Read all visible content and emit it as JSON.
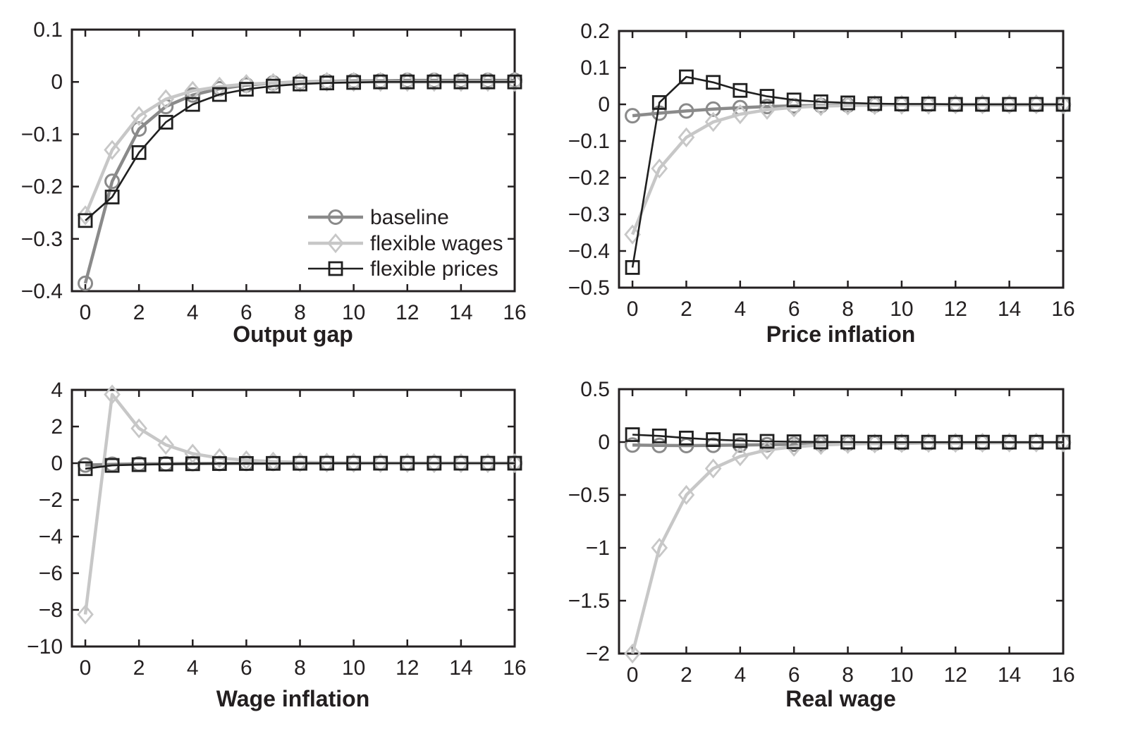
{
  "figure": {
    "background": "#ffffff",
    "description": "2x2 grid of impulse-response line charts"
  },
  "colors": {
    "baseline": "#8a8a8a",
    "flexible_wages": "#c7c7c7",
    "flexible_prices": "#1f1f1f",
    "axis": "#231f20"
  },
  "legend": {
    "position": "inside top-left panel, lower right area",
    "entries": [
      {
        "label": "baseline",
        "marker": "circle",
        "color": "baseline"
      },
      {
        "label": "flexible wages",
        "marker": "diamond",
        "color": "flexible_wages"
      },
      {
        "label": "flexible prices",
        "marker": "square",
        "color": "flexible_prices"
      }
    ]
  },
  "chart_data": [
    {
      "type": "line",
      "title": "Output gap",
      "x": [
        0,
        1,
        2,
        3,
        4,
        5,
        6,
        7,
        8,
        9,
        10,
        11,
        12,
        13,
        14,
        15,
        16
      ],
      "xticks": [
        0,
        2,
        4,
        6,
        8,
        10,
        12,
        14,
        16
      ],
      "yticks": [
        0.1,
        0,
        -0.1,
        -0.2,
        -0.3,
        -0.4
      ],
      "ylim": [
        -0.4,
        0.1
      ],
      "xlim": [
        -0.5,
        16
      ],
      "grid": false,
      "legend_visible": true,
      "series": [
        {
          "name": "baseline",
          "marker": "circle",
          "color": "baseline",
          "values": [
            -0.385,
            -0.19,
            -0.09,
            -0.047,
            -0.025,
            -0.013,
            -0.006,
            -0.002,
            0,
            0.001,
            0.002,
            0.002,
            0.003,
            0.003,
            0.003,
            0.003,
            0.003
          ]
        },
        {
          "name": "flexible wages",
          "marker": "diamond",
          "color": "flexible_wages",
          "values": [
            -0.255,
            -0.13,
            -0.065,
            -0.033,
            -0.017,
            -0.009,
            -0.004,
            -0.002,
            -0.001,
            0,
            0,
            0,
            0,
            0,
            0,
            0,
            0
          ]
        },
        {
          "name": "flexible prices",
          "marker": "square",
          "color": "flexible_prices",
          "values": [
            -0.265,
            -0.22,
            -0.135,
            -0.077,
            -0.043,
            -0.024,
            -0.014,
            -0.008,
            -0.004,
            -0.002,
            -0.001,
            0,
            0,
            0,
            0,
            0,
            0
          ]
        }
      ]
    },
    {
      "type": "line",
      "title": "Price inflation",
      "x": [
        0,
        1,
        2,
        3,
        4,
        5,
        6,
        7,
        8,
        9,
        10,
        11,
        12,
        13,
        14,
        15,
        16
      ],
      "xticks": [
        0,
        2,
        4,
        6,
        8,
        10,
        12,
        14,
        16
      ],
      "yticks": [
        0.2,
        0.1,
        0,
        -0.1,
        -0.2,
        -0.3,
        -0.4,
        -0.5
      ],
      "ylim": [
        -0.5,
        0.2
      ],
      "xlim": [
        -0.5,
        16
      ],
      "grid": false,
      "legend_visible": false,
      "series": [
        {
          "name": "baseline",
          "marker": "circle",
          "color": "baseline",
          "values": [
            -0.031,
            -0.024,
            -0.018,
            -0.013,
            -0.009,
            -0.006,
            -0.004,
            -0.003,
            -0.002,
            -0.002,
            -0.001,
            -0.001,
            -0.001,
            -0.001,
            -0.001,
            -0.001,
            -0.001
          ]
        },
        {
          "name": "flexible wages",
          "marker": "diamond",
          "color": "flexible_wages",
          "values": [
            -0.355,
            -0.175,
            -0.09,
            -0.048,
            -0.027,
            -0.015,
            -0.008,
            -0.005,
            -0.003,
            -0.002,
            -0.001,
            -0.001,
            0,
            0,
            0,
            0,
            0
          ]
        },
        {
          "name": "flexible prices",
          "marker": "square",
          "color": "flexible_prices",
          "values": [
            -0.445,
            0.005,
            0.075,
            0.06,
            0.038,
            0.022,
            0.012,
            0.007,
            0.004,
            0.002,
            0.001,
            0.001,
            0,
            0,
            0,
            0,
            0
          ]
        }
      ]
    },
    {
      "type": "line",
      "title": "Wage inflation",
      "x": [
        0,
        1,
        2,
        3,
        4,
        5,
        6,
        7,
        8,
        9,
        10,
        11,
        12,
        13,
        14,
        15,
        16
      ],
      "xticks": [
        0,
        2,
        4,
        6,
        8,
        10,
        12,
        14,
        16
      ],
      "yticks": [
        4,
        2,
        0,
        -2,
        -4,
        -6,
        -8,
        -10
      ],
      "ylim": [
        -10,
        4
      ],
      "xlim": [
        -0.5,
        16
      ],
      "grid": false,
      "legend_visible": false,
      "series": [
        {
          "name": "baseline",
          "marker": "circle",
          "color": "baseline",
          "values": [
            -0.1,
            -0.06,
            -0.04,
            -0.03,
            -0.02,
            -0.015,
            -0.01,
            -0.005,
            0,
            0,
            0,
            0,
            0,
            0,
            0,
            0,
            0
          ]
        },
        {
          "name": "flexible wages",
          "marker": "diamond",
          "color": "flexible_wages",
          "values": [
            -8.25,
            3.75,
            1.9,
            1.0,
            0.52,
            0.28,
            0.16,
            0.09,
            0.05,
            0.03,
            0.02,
            0.01,
            0.01,
            0,
            0,
            0,
            0
          ]
        },
        {
          "name": "flexible prices",
          "marker": "square",
          "color": "flexible_prices",
          "values": [
            -0.3,
            -0.12,
            -0.08,
            -0.05,
            -0.03,
            -0.02,
            -0.015,
            -0.01,
            -0.005,
            0,
            0,
            0,
            0,
            0,
            0,
            0,
            0
          ]
        }
      ]
    },
    {
      "type": "line",
      "title": "Real wage",
      "x": [
        0,
        1,
        2,
        3,
        4,
        5,
        6,
        7,
        8,
        9,
        10,
        11,
        12,
        13,
        14,
        15,
        16
      ],
      "xticks": [
        0,
        2,
        4,
        6,
        8,
        10,
        12,
        14,
        16
      ],
      "yticks": [
        0.5,
        0,
        -0.5,
        -1,
        -1.5,
        -2
      ],
      "ylim": [
        -2,
        0.5
      ],
      "xlim": [
        -0.5,
        16
      ],
      "grid": false,
      "legend_visible": false,
      "series": [
        {
          "name": "baseline",
          "marker": "circle",
          "color": "baseline",
          "values": [
            -0.028,
            -0.032,
            -0.033,
            -0.031,
            -0.028,
            -0.025,
            -0.021,
            -0.018,
            -0.015,
            -0.013,
            -0.011,
            -0.009,
            -0.008,
            -0.007,
            -0.006,
            -0.005,
            -0.005
          ]
        },
        {
          "name": "flexible wages",
          "marker": "diamond",
          "color": "flexible_wages",
          "values": [
            -2.0,
            -1.0,
            -0.5,
            -0.25,
            -0.135,
            -0.075,
            -0.045,
            -0.028,
            -0.018,
            -0.013,
            -0.01,
            -0.008,
            -0.007,
            -0.006,
            -0.005,
            -0.005,
            -0.004
          ]
        },
        {
          "name": "flexible prices",
          "marker": "square",
          "color": "flexible_prices",
          "values": [
            0.07,
            0.058,
            0.038,
            0.023,
            0.013,
            0.007,
            0.003,
            0.001,
            0,
            -0.001,
            -0.001,
            -0.001,
            -0.001,
            -0.001,
            -0.001,
            -0.001,
            -0.001
          ]
        }
      ]
    }
  ]
}
